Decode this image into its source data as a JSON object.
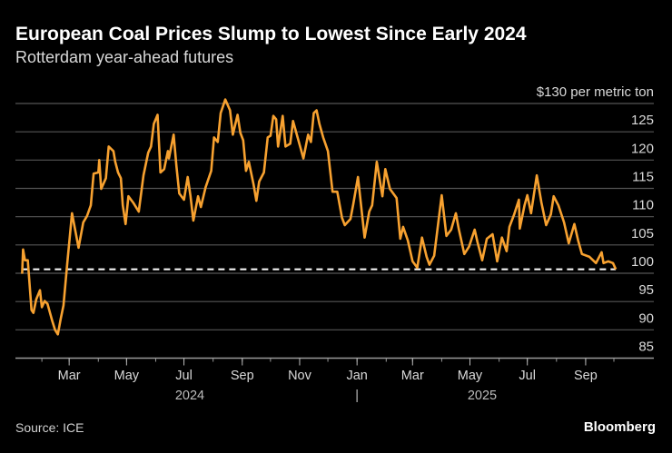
{
  "chart_data": {
    "type": "line",
    "title": "European Coal Prices Slump to Lowest Since Early 2024",
    "subtitle": "Rotterdam year-ahead futures",
    "ylabel_top": "$130 per metric ton",
    "ylim": [
      85,
      130
    ],
    "yticks": [
      85,
      90,
      95,
      100,
      105,
      110,
      115,
      120,
      125,
      130
    ],
    "ytick_labels": [
      "85",
      "90",
      "95",
      "100",
      "105",
      "110",
      "115",
      "120",
      "125",
      "$130 per metric ton"
    ],
    "xlim": [
      "2024-01-01",
      "2025-10-20"
    ],
    "xticks": [
      "2024-03-01",
      "2024-05-01",
      "2024-07-01",
      "2024-09-01",
      "2024-11-01",
      "2025-01-01",
      "2025-03-01",
      "2025-05-01",
      "2025-07-01",
      "2025-09-01"
    ],
    "xtick_labels": [
      "Mar",
      "May",
      "Jul",
      "Sep",
      "Nov",
      "Jan",
      "Mar",
      "May",
      "Jul",
      "Sep"
    ],
    "year_labels": [
      "2024",
      "|",
      "2025"
    ],
    "grid": true,
    "line_color": "#f7a130",
    "reference_line": {
      "value": 100.7,
      "style": "dashed",
      "color": "#ffffff"
    },
    "series": [
      {
        "points": [
          [
            "2024-01-11",
            99.9
          ],
          [
            "2024-01-12",
            104.2
          ],
          [
            "2024-01-14",
            102.3
          ],
          [
            "2024-01-17",
            102.3
          ],
          [
            "2024-01-21",
            93.5
          ],
          [
            "2024-01-23",
            93.0
          ],
          [
            "2024-01-26",
            95.4
          ],
          [
            "2024-01-30",
            97.0
          ],
          [
            "2024-02-01",
            94.0
          ],
          [
            "2024-02-04",
            95.1
          ],
          [
            "2024-02-07",
            94.6
          ],
          [
            "2024-02-12",
            91.6
          ],
          [
            "2024-02-15",
            90.0
          ],
          [
            "2024-02-18",
            89.2
          ],
          [
            "2024-02-21",
            91.9
          ],
          [
            "2024-02-24",
            94.3
          ],
          [
            "2024-02-28",
            101.8
          ],
          [
            "2024-03-04",
            110.6
          ],
          [
            "2024-03-11",
            104.5
          ],
          [
            "2024-03-16",
            109.0
          ],
          [
            "2024-03-20",
            110.1
          ],
          [
            "2024-03-24",
            112.0
          ],
          [
            "2024-03-27",
            117.6
          ],
          [
            "2024-04-01",
            117.8
          ],
          [
            "2024-04-02",
            120.0
          ],
          [
            "2024-04-04",
            114.9
          ],
          [
            "2024-04-09",
            116.8
          ],
          [
            "2024-04-12",
            122.4
          ],
          [
            "2024-04-17",
            121.6
          ],
          [
            "2024-04-19",
            119.7
          ],
          [
            "2024-04-22",
            117.8
          ],
          [
            "2024-04-25",
            116.8
          ],
          [
            "2024-04-27",
            112.0
          ],
          [
            "2024-04-30",
            108.7
          ],
          [
            "2024-05-03",
            113.6
          ],
          [
            "2024-05-08",
            112.5
          ],
          [
            "2024-05-14",
            110.9
          ],
          [
            "2024-05-19",
            117.3
          ],
          [
            "2024-05-24",
            121.3
          ],
          [
            "2024-05-27",
            122.4
          ],
          [
            "2024-05-30",
            126.4
          ],
          [
            "2024-06-03",
            128.0
          ],
          [
            "2024-06-06",
            117.8
          ],
          [
            "2024-06-10",
            118.4
          ],
          [
            "2024-06-14",
            121.6
          ],
          [
            "2024-06-15",
            120.3
          ],
          [
            "2024-06-20",
            124.5
          ],
          [
            "2024-06-23",
            118.9
          ],
          [
            "2024-06-26",
            114.1
          ],
          [
            "2024-07-01",
            113.0
          ],
          [
            "2024-07-05",
            117.0
          ],
          [
            "2024-07-08",
            113.6
          ],
          [
            "2024-07-11",
            109.3
          ],
          [
            "2024-07-16",
            113.6
          ],
          [
            "2024-07-19",
            111.7
          ],
          [
            "2024-07-24",
            115.2
          ],
          [
            "2024-07-30",
            118.1
          ],
          [
            "2024-08-02",
            124.0
          ],
          [
            "2024-08-06",
            123.2
          ],
          [
            "2024-08-09",
            128.3
          ],
          [
            "2024-08-14",
            130.7
          ],
          [
            "2024-08-19",
            128.8
          ],
          [
            "2024-08-22",
            124.5
          ],
          [
            "2024-08-27",
            128.0
          ],
          [
            "2024-08-30",
            124.8
          ],
          [
            "2024-09-02",
            123.5
          ],
          [
            "2024-09-05",
            118.1
          ],
          [
            "2024-09-08",
            119.7
          ],
          [
            "2024-09-13",
            115.7
          ],
          [
            "2024-09-16",
            112.8
          ],
          [
            "2024-09-19",
            116.2
          ],
          [
            "2024-09-24",
            117.8
          ],
          [
            "2024-09-28",
            124.0
          ],
          [
            "2024-10-01",
            124.3
          ],
          [
            "2024-10-04",
            127.8
          ],
          [
            "2024-10-07",
            127.2
          ],
          [
            "2024-10-09",
            122.4
          ],
          [
            "2024-10-14",
            127.8
          ],
          [
            "2024-10-17",
            122.4
          ],
          [
            "2024-10-22",
            122.9
          ],
          [
            "2024-10-25",
            126.9
          ],
          [
            "2024-10-28",
            125.1
          ],
          [
            "2024-11-02",
            122.1
          ],
          [
            "2024-11-05",
            120.3
          ],
          [
            "2024-11-10",
            124.5
          ],
          [
            "2024-11-13",
            123.2
          ],
          [
            "2024-11-16",
            128.3
          ],
          [
            "2024-11-19",
            128.8
          ],
          [
            "2024-11-22",
            126.4
          ],
          [
            "2024-11-26",
            124.0
          ],
          [
            "2024-12-01",
            121.6
          ],
          [
            "2024-12-06",
            114.4
          ],
          [
            "2024-12-11",
            114.4
          ],
          [
            "2024-12-16",
            109.8
          ],
          [
            "2024-12-19",
            108.5
          ],
          [
            "2024-12-25",
            109.6
          ],
          [
            "2024-12-28",
            112.2
          ],
          [
            "2025-01-02",
            117.0
          ],
          [
            "2025-01-09",
            106.3
          ],
          [
            "2025-01-14",
            110.9
          ],
          [
            "2025-01-17",
            112.0
          ],
          [
            "2025-01-22",
            119.7
          ],
          [
            "2025-01-28",
            113.6
          ],
          [
            "2025-01-31",
            118.4
          ],
          [
            "2025-02-05",
            114.9
          ],
          [
            "2025-02-12",
            113.3
          ],
          [
            "2025-02-16",
            106.1
          ],
          [
            "2025-02-19",
            108.2
          ],
          [
            "2025-02-24",
            105.8
          ],
          [
            "2025-03-01",
            102.1
          ],
          [
            "2025-03-06",
            101.0
          ],
          [
            "2025-03-11",
            106.3
          ],
          [
            "2025-03-16",
            102.9
          ],
          [
            "2025-03-19",
            101.5
          ],
          [
            "2025-03-24",
            103.1
          ],
          [
            "2025-04-01",
            113.8
          ],
          [
            "2025-04-06",
            106.6
          ],
          [
            "2025-04-11",
            107.7
          ],
          [
            "2025-04-16",
            110.6
          ],
          [
            "2025-04-19",
            107.9
          ],
          [
            "2025-04-25",
            103.4
          ],
          [
            "2025-04-30",
            104.7
          ],
          [
            "2025-05-06",
            107.7
          ],
          [
            "2025-05-09",
            105.5
          ],
          [
            "2025-05-14",
            102.3
          ],
          [
            "2025-05-19",
            106.1
          ],
          [
            "2025-05-25",
            106.9
          ],
          [
            "2025-05-30",
            102.1
          ],
          [
            "2025-06-04",
            106.3
          ],
          [
            "2025-06-09",
            103.9
          ],
          [
            "2025-06-12",
            108.2
          ],
          [
            "2025-06-17",
            110.4
          ],
          [
            "2025-06-22",
            113.0
          ],
          [
            "2025-06-23",
            107.9
          ],
          [
            "2025-06-28",
            112.0
          ],
          [
            "2025-07-01",
            113.8
          ],
          [
            "2025-07-05",
            110.6
          ],
          [
            "2025-07-11",
            117.3
          ],
          [
            "2025-07-16",
            112.5
          ],
          [
            "2025-07-21",
            108.5
          ],
          [
            "2025-07-26",
            110.4
          ],
          [
            "2025-07-29",
            113.6
          ],
          [
            "2025-08-03",
            112.0
          ],
          [
            "2025-08-09",
            109.0
          ],
          [
            "2025-08-14",
            105.3
          ],
          [
            "2025-08-20",
            108.7
          ],
          [
            "2025-08-24",
            105.8
          ],
          [
            "2025-08-28",
            103.4
          ],
          [
            "2025-09-05",
            102.9
          ],
          [
            "2025-09-12",
            101.8
          ],
          [
            "2025-09-18",
            103.7
          ],
          [
            "2025-09-20",
            101.8
          ],
          [
            "2025-09-25",
            102.1
          ],
          [
            "2025-09-30",
            101.8
          ],
          [
            "2025-10-03",
            100.7
          ]
        ]
      }
    ],
    "source": "Source: ICE",
    "brand": "Bloomberg"
  }
}
